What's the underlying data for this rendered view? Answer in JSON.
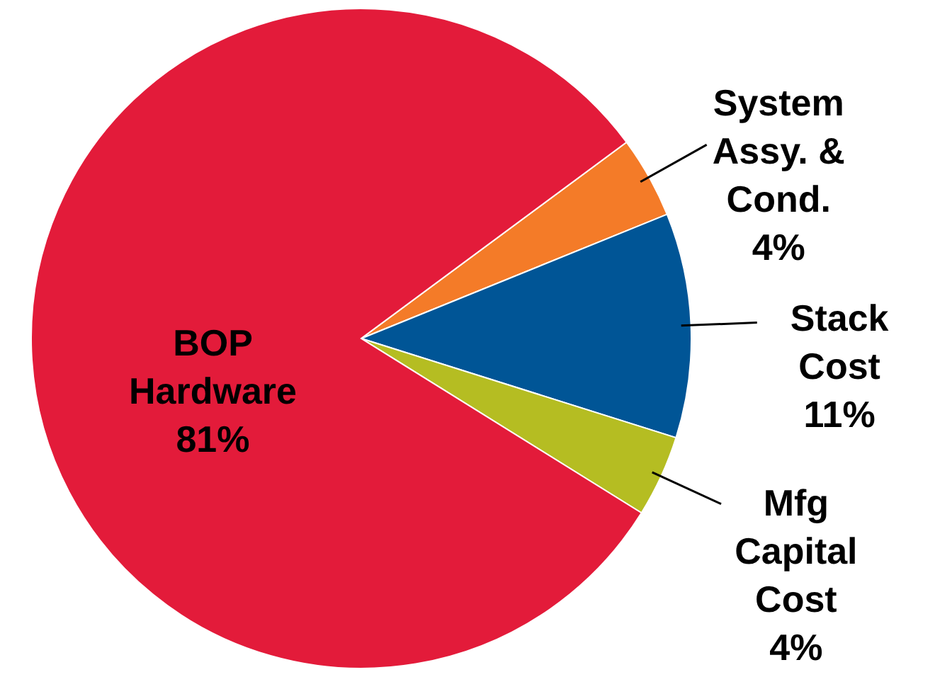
{
  "chart_data": {
    "type": "pie",
    "categories": [
      "System Assy. & Cond.",
      "Stack Cost",
      "Mfg Capital Cost",
      "BOP Hardware"
    ],
    "values": [
      4,
      11,
      4,
      81
    ],
    "colors": [
      "#f47b28",
      "#005596",
      "#b5bd22",
      "#e31b3a"
    ],
    "value_labels": [
      "4%",
      "11%",
      "4%",
      "81%"
    ]
  }
}
